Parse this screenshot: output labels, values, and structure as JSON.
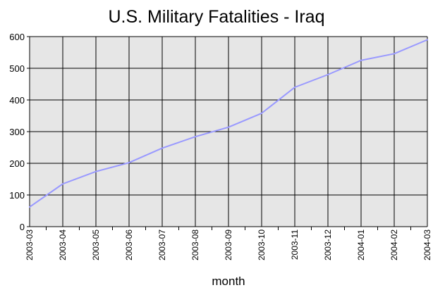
{
  "chart_data": {
    "type": "line",
    "title": "U.S. Military Fatalities - Iraq",
    "xlabel": "month",
    "ylabel": "",
    "ylim": [
      0,
      600
    ],
    "yticks": [
      0,
      100,
      200,
      300,
      400,
      500,
      600
    ],
    "categories": [
      "2003-03",
      "2003-04",
      "2003-05",
      "2003-06",
      "2003-07",
      "2003-08",
      "2003-09",
      "2003-10",
      "2003-11",
      "2003-12",
      "2004-01",
      "2004-02",
      "2004-03"
    ],
    "series": [
      {
        "values": [
          62,
          135,
          174,
          202,
          248,
          284,
          314,
          358,
          440,
          480,
          525,
          546,
          590
        ]
      }
    ],
    "grid": true,
    "legend": "none",
    "colors": {
      "line": "#9999ff",
      "plot_bg": "#e6e6e6",
      "grid": "#000000"
    }
  }
}
